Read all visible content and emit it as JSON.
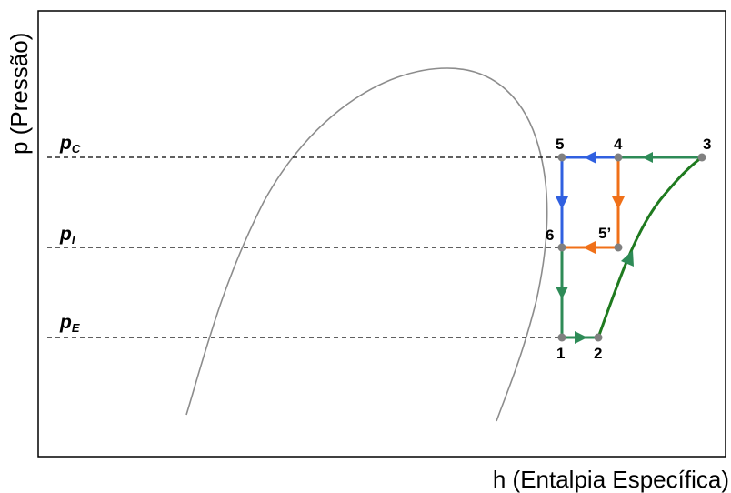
{
  "axes": {
    "x_label": "h (Entalpia Específica)",
    "y_label": "p (Pressão)"
  },
  "pressure_levels": [
    {
      "id": "pc",
      "main": "p",
      "sub": "C"
    },
    {
      "id": "pi",
      "main": "p",
      "sub": "I"
    },
    {
      "id": "pe",
      "main": "p",
      "sub": "E"
    }
  ],
  "points": {
    "p1": "1",
    "p2": "2",
    "p3": "3",
    "p4": "4",
    "p5": "5",
    "p5prime": "5’",
    "p6": "6"
  },
  "colors": {
    "frame": "#000000",
    "saturation_dome": "#8c8c8c",
    "low_stage_green": "#2e8b57",
    "compression_curve": "#1f7a1f",
    "blue_path": "#3060e0",
    "orange_path": "#f07018",
    "state_point": "#808080"
  }
}
